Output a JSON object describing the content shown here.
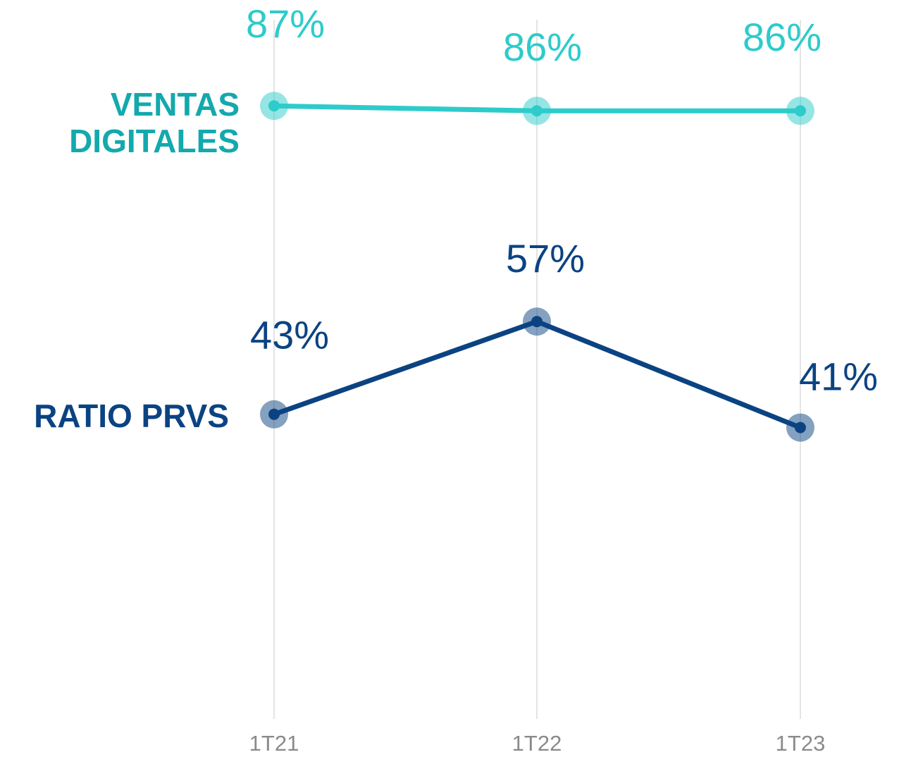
{
  "chart_data": {
    "type": "line",
    "categories": [
      "1T21",
      "1T22",
      "1T23"
    ],
    "series": [
      {
        "name": "VENTAS DIGITALES",
        "color": "#2ecbcb",
        "label_color": "#13a9ad",
        "axis": "y2",
        "values": [
          87,
          86,
          86
        ],
        "value_labels": [
          "87%",
          "86%",
          "86%"
        ]
      },
      {
        "name": "RATIO PRVS",
        "color": "#0b4382",
        "label_color": "#0b4382",
        "values": [
          43,
          57,
          41
        ],
        "value_labels": [
          "43%",
          "57%",
          "41%"
        ]
      }
    ],
    "ylim": [
      0,
      100
    ],
    "y2lim": [
      -33,
      101
    ],
    "grid": true
  }
}
